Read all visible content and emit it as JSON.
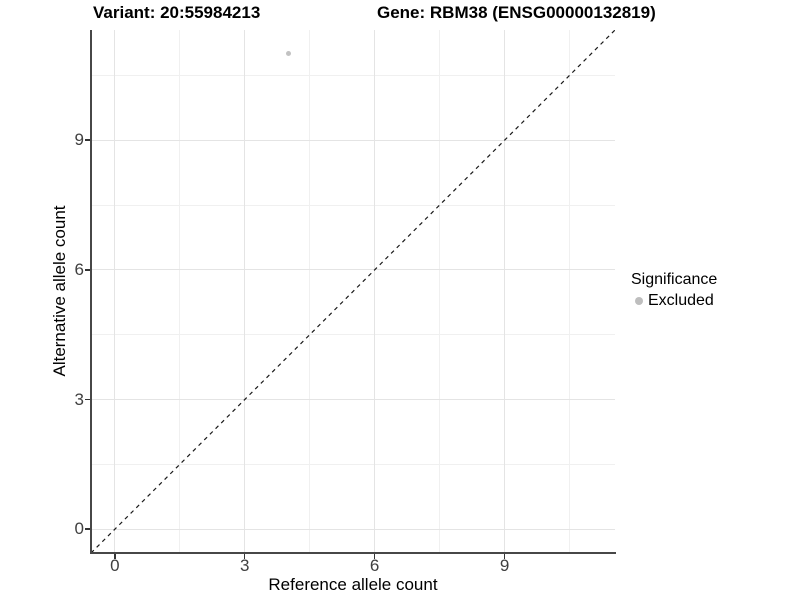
{
  "chart_data": {
    "type": "scatter",
    "title_left": "Variant: 20:55984213",
    "title_right": "Gene: RBM38 (ENSG00000132819)",
    "xlabel": "Reference allele count",
    "ylabel": "Alternative allele count",
    "xlim": [
      -0.55,
      11.55
    ],
    "ylim": [
      -0.55,
      11.55
    ],
    "x_ticks": [
      0,
      3,
      6,
      9
    ],
    "y_ticks": [
      0,
      3,
      6,
      9
    ],
    "x_minor": [
      1.5,
      4.5,
      7.5,
      10.5
    ],
    "y_minor": [
      1.5,
      4.5,
      7.5,
      10.5
    ],
    "grid": true,
    "legend_position": "right",
    "legend": {
      "title": "Significance",
      "items": [
        {
          "label": "Excluded",
          "color": "#bebebe"
        }
      ]
    },
    "series": [
      {
        "name": "Excluded",
        "color": "#c2c2c2",
        "points": [
          [
            4,
            11
          ]
        ]
      }
    ],
    "reference_line": {
      "kind": "identity",
      "equation": "y = x",
      "style": "dashed",
      "color": "#1a1a1a"
    }
  },
  "colors": {
    "background": "#ffffff",
    "axis_line": "#474747",
    "grid_major": "#e4e4e4",
    "grid_minor": "#f0f0f0",
    "tick_mark": "#333333",
    "tick_label": "#404040",
    "text": "#000000"
  }
}
